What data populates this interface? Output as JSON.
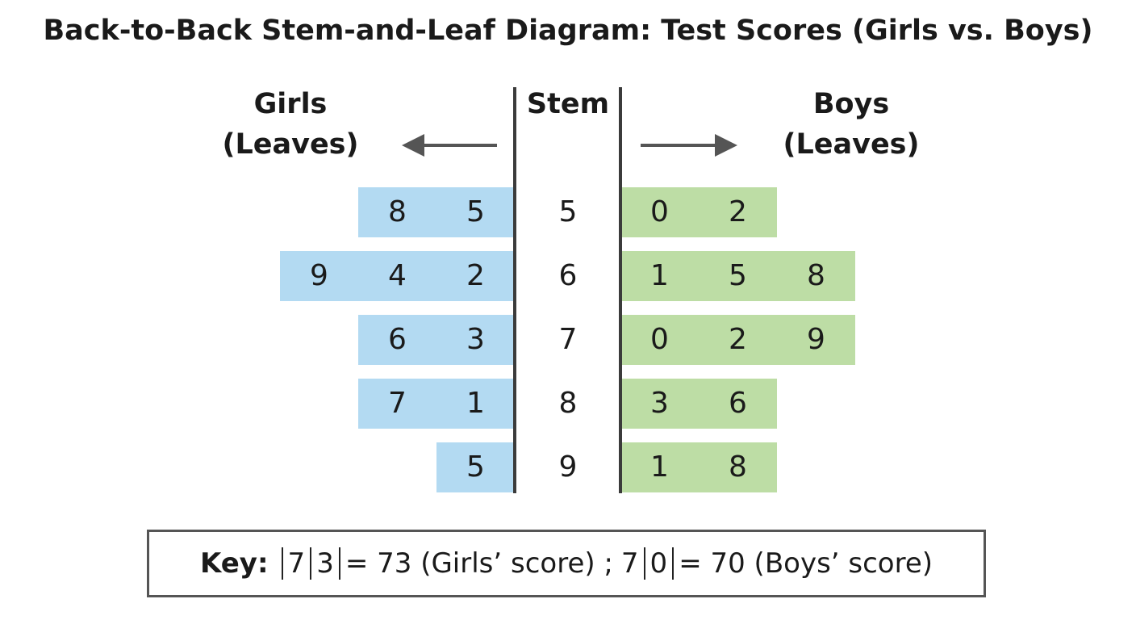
{
  "title": "Back-to-Back Stem-and-Leaf Diagram: Test Scores (Girls vs. Boys)",
  "headers": {
    "girls_line1": "Girls",
    "girls_line2": "(Leaves)",
    "stem": "Stem",
    "boys_line1": "Boys",
    "boys_line2": "(Leaves)"
  },
  "colors": {
    "girls": "#b3daf2",
    "boys": "#bddda5",
    "lines": "#3b3b3b"
  },
  "rows": [
    {
      "stem": "5",
      "girls": [
        "8",
        "5"
      ],
      "boys": [
        "0",
        "2"
      ]
    },
    {
      "stem": "6",
      "girls": [
        "9",
        "4",
        "2"
      ],
      "boys": [
        "1",
        "5",
        "8"
      ]
    },
    {
      "stem": "7",
      "girls": [
        "6",
        "3"
      ],
      "boys": [
        "0",
        "2",
        "9"
      ]
    },
    {
      "stem": "8",
      "girls": [
        "7",
        "1"
      ],
      "boys": [
        "3",
        "6"
      ]
    },
    {
      "stem": "9",
      "girls": [
        "5"
      ],
      "boys": [
        "1",
        "8"
      ]
    }
  ],
  "key": {
    "label": "Key:",
    "girls_stem": "7",
    "girls_leaf": "3",
    "girls_text": "= 73 (Girls’ score) ;",
    "boys_stem": "7",
    "boys_leaf": "0",
    "boys_text": "= 70 (Boys’ score)"
  }
}
